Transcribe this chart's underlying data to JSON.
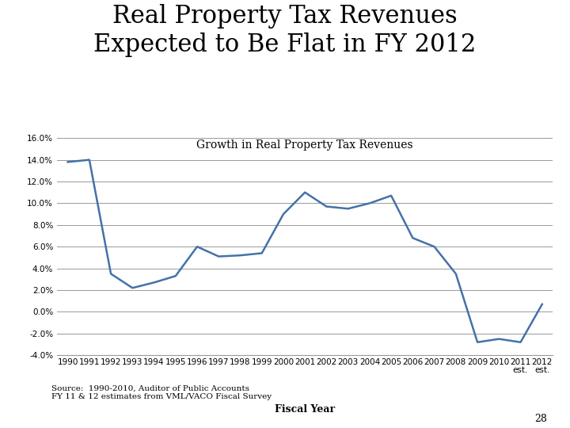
{
  "title_line1": "Real Property Tax Revenues",
  "title_line2": "Expected to Be Flat in FY 2012",
  "chart_label": "Growth in Real Property Tax Revenues",
  "xlabel": "Fiscal Year",
  "source_text": "Source:  1990-2010, Auditor of Public Accounts\nFY 11 & 12 estimates from VML/VACO Fiscal Survey",
  "page_number": "28",
  "years": [
    1990,
    1991,
    1992,
    1993,
    1994,
    1995,
    1996,
    1997,
    1998,
    1999,
    2000,
    2001,
    2002,
    2003,
    2004,
    2005,
    2006,
    2007,
    2008,
    2009,
    2010,
    2011,
    2012
  ],
  "xtick_labels": [
    "1990",
    "1991",
    "1992",
    "1993",
    "1994",
    "1995",
    "1996",
    "1997",
    "1998",
    "1999",
    "2000",
    "2001",
    "2002",
    "2003",
    "2004",
    "2005",
    "2006",
    "2007",
    "2008",
    "2009",
    "2010",
    "2011\nest.",
    "2012\nest."
  ],
  "values": [
    0.138,
    0.14,
    0.035,
    0.022,
    0.027,
    0.033,
    0.06,
    0.051,
    0.052,
    0.054,
    0.09,
    0.11,
    0.097,
    0.095,
    0.1,
    0.107,
    0.068,
    0.06,
    0.035,
    -0.028,
    -0.025,
    -0.028,
    0.007
  ],
  "line_color": "#4472A8",
  "line_width": 1.8,
  "ylim": [
    -0.04,
    0.165
  ],
  "yticks": [
    -0.04,
    -0.02,
    0.0,
    0.02,
    0.04,
    0.06,
    0.08,
    0.1,
    0.12,
    0.14,
    0.16
  ],
  "grid_color": "#999999",
  "bg_color": "#FFFFFF",
  "title_fontsize": 22,
  "chart_label_fontsize": 10,
  "tick_fontsize": 7.5,
  "xlabel_fontsize": 9,
  "source_fontsize": 7.5,
  "page_fontsize": 9
}
